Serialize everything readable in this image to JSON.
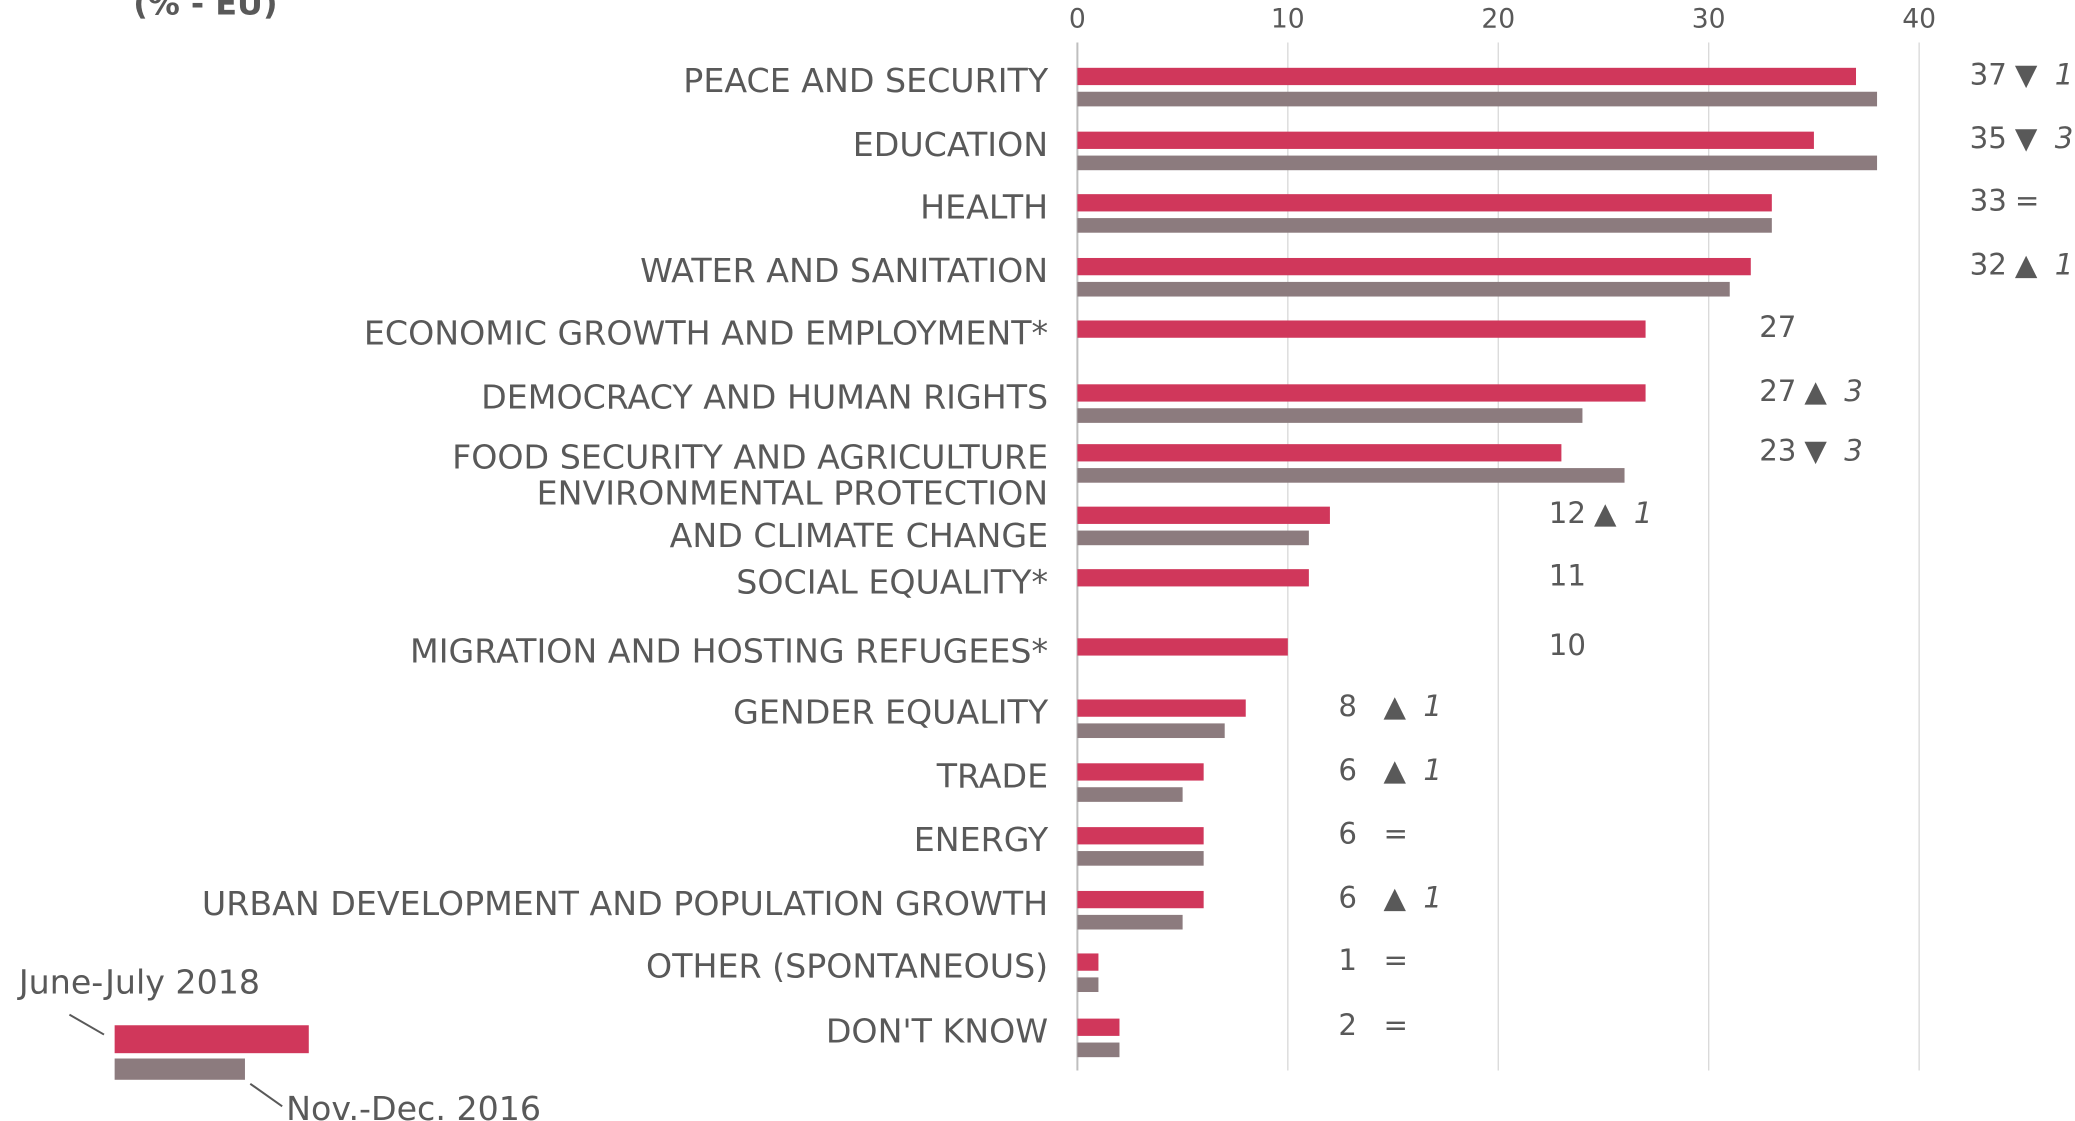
{
  "chart_data": {
    "type": "bar",
    "orientation": "horizontal",
    "title": "(% - EU)",
    "categories": [
      "PEACE AND SECURITY",
      "EDUCATION",
      "HEALTH",
      "WATER AND SANITATION",
      "ECONOMIC GROWTH AND EMPLOYMENT*",
      "DEMOCRACY AND HUMAN RIGHTS",
      "FOOD SECURITY AND AGRICULTURE",
      "ENVIRONMENTAL PROTECTION\nAND CLIMATE CHANGE",
      "SOCIAL EQUALITY*",
      "MIGRATION AND HOSTING REFUGEES*",
      "GENDER EQUALITY",
      "TRADE",
      "ENERGY",
      "URBAN DEVELOPMENT AND POPULATION GROWTH",
      "OTHER (SPONTANEOUS)",
      "DON'T KNOW"
    ],
    "series": [
      {
        "name": "June-July 2018",
        "color": "#d0375b",
        "values": [
          37,
          35,
          33,
          32,
          27,
          27,
          23,
          12,
          11,
          10,
          8,
          6,
          6,
          6,
          1,
          2
        ]
      },
      {
        "name": "Nov.-Dec. 2016",
        "color": "#8c7b7e",
        "values": [
          38,
          38,
          33,
          31,
          null,
          24,
          26,
          11,
          null,
          null,
          7,
          5,
          6,
          5,
          1,
          2
        ]
      }
    ],
    "change_symbols": [
      "▼",
      "▼",
      "=",
      "▲",
      null,
      "▲",
      "▼",
      "▲",
      null,
      null,
      "▲",
      "▲",
      "=",
      "▲",
      "=",
      "="
    ],
    "change_values": [
      1,
      3,
      null,
      1,
      null,
      3,
      3,
      1,
      null,
      null,
      1,
      1,
      null,
      1,
      null,
      null
    ],
    "xlim": [
      0,
      40
    ],
    "xticks": [
      0,
      10,
      20,
      30,
      40
    ],
    "grid": true
  }
}
